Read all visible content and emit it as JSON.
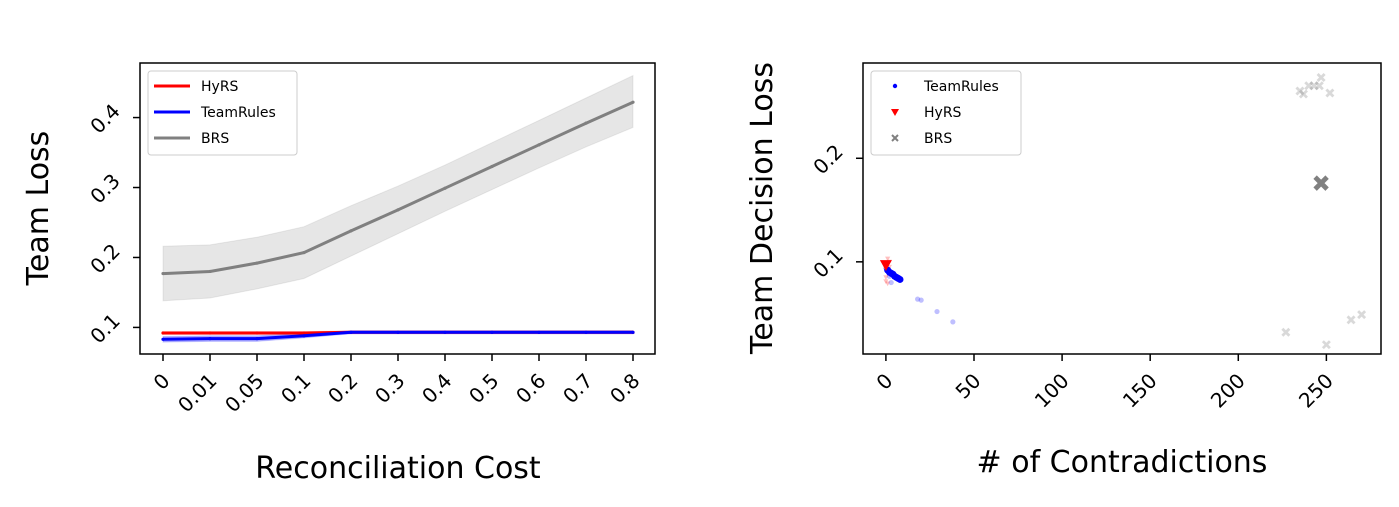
{
  "chart_data": [
    {
      "type": "line",
      "xlabel": "Reconciliation Cost",
      "ylabel": "Team Loss",
      "categories": [
        "0",
        "0.01",
        "0.05",
        "0.1",
        "0.2",
        "0.3",
        "0.4",
        "0.5",
        "0.6",
        "0.7",
        "0.8"
      ],
      "yticks": [
        "0.1",
        "0.2",
        "0.3",
        "0.4"
      ],
      "ylim": [
        0.062,
        0.478
      ],
      "grid": false,
      "legend_position": "top-left",
      "series": [
        {
          "name": "HyRS",
          "color": "#ff0000",
          "values": [
            0.092,
            0.092,
            0.092,
            0.092,
            0.093,
            0.093,
            0.093,
            0.093,
            0.093,
            0.093,
            0.093
          ],
          "lower": [
            0.09,
            0.09,
            0.09,
            0.09,
            0.091,
            0.091,
            0.091,
            0.091,
            0.091,
            0.091,
            0.091
          ],
          "upper": [
            0.094,
            0.094,
            0.094,
            0.094,
            0.095,
            0.095,
            0.095,
            0.095,
            0.095,
            0.095,
            0.095
          ]
        },
        {
          "name": "TeamRules",
          "color": "#0000ff",
          "values": [
            0.083,
            0.084,
            0.084,
            0.088,
            0.093,
            0.093,
            0.093,
            0.093,
            0.093,
            0.093,
            0.093
          ],
          "lower": [
            0.079,
            0.08,
            0.08,
            0.085,
            0.091,
            0.091,
            0.091,
            0.091,
            0.091,
            0.091,
            0.091
          ],
          "upper": [
            0.087,
            0.088,
            0.088,
            0.091,
            0.095,
            0.095,
            0.095,
            0.095,
            0.095,
            0.095,
            0.095
          ]
        },
        {
          "name": "BRS",
          "color": "#808080",
          "values": [
            0.177,
            0.18,
            0.192,
            0.207,
            0.238,
            0.268,
            0.299,
            0.33,
            0.361,
            0.392,
            0.422
          ],
          "lower": [
            0.138,
            0.142,
            0.155,
            0.17,
            0.202,
            0.234,
            0.266,
            0.297,
            0.328,
            0.358,
            0.386
          ],
          "upper": [
            0.216,
            0.218,
            0.229,
            0.244,
            0.274,
            0.302,
            0.332,
            0.364,
            0.396,
            0.428,
            0.46
          ]
        }
      ]
    },
    {
      "type": "scatter",
      "xlabel": "# of Contradictions",
      "ylabel": "Team Decision Loss",
      "xticks": [
        0,
        50,
        100,
        150,
        200,
        250
      ],
      "yticks": [
        0.1,
        0.2
      ],
      "xlim": [
        -13,
        281
      ],
      "ylim": [
        0.011,
        0.292
      ],
      "grid": false,
      "legend_position": "top-left",
      "series": [
        {
          "name": "TeamRules",
          "color": "#0000ff",
          "marker": "dot",
          "points": [
            [
              0,
              0.094
            ],
            [
              1,
              0.093
            ],
            [
              2,
              0.091
            ],
            [
              3,
              0.089
            ],
            [
              4,
              0.088
            ],
            [
              5,
              0.086
            ],
            [
              6,
              0.085
            ],
            [
              3,
              0.08
            ],
            [
              2,
              0.086
            ],
            [
              18,
              0.064
            ],
            [
              20,
              0.063
            ],
            [
              29,
              0.052
            ],
            [
              38,
              0.042
            ]
          ],
          "mean": [
            [
              1,
              0.092
            ],
            [
              2,
              0.09
            ],
            [
              3,
              0.089
            ],
            [
              4,
              0.088
            ],
            [
              5,
              0.086
            ],
            [
              6,
              0.085
            ],
            [
              7,
              0.084
            ],
            [
              8,
              0.083
            ]
          ]
        },
        {
          "name": "HyRS",
          "color": "#ff0000",
          "marker": "triangle-down",
          "points": [
            [
              0,
              0.085
            ],
            [
              1,
              0.089
            ],
            [
              0,
              0.099
            ],
            [
              1,
              0.103
            ],
            [
              0,
              0.081
            ],
            [
              2,
              0.095
            ],
            [
              1,
              0.079
            ],
            [
              0,
              0.092
            ],
            [
              2,
              0.1
            ]
          ],
          "mean": [
            [
              0,
              0.097
            ]
          ]
        },
        {
          "name": "BRS",
          "color": "#808080",
          "marker": "x",
          "points": [
            [
              235,
              0.265
            ],
            [
              237,
              0.262
            ],
            [
              240,
              0.27
            ],
            [
              243,
              0.27
            ],
            [
              246,
              0.27
            ],
            [
              247,
              0.278
            ],
            [
              252,
              0.263
            ],
            [
              227,
              0.032
            ],
            [
              250,
              0.02
            ],
            [
              264,
              0.044
            ],
            [
              270,
              0.049
            ]
          ],
          "mean": [
            [
              247,
              0.176
            ]
          ]
        }
      ]
    }
  ]
}
